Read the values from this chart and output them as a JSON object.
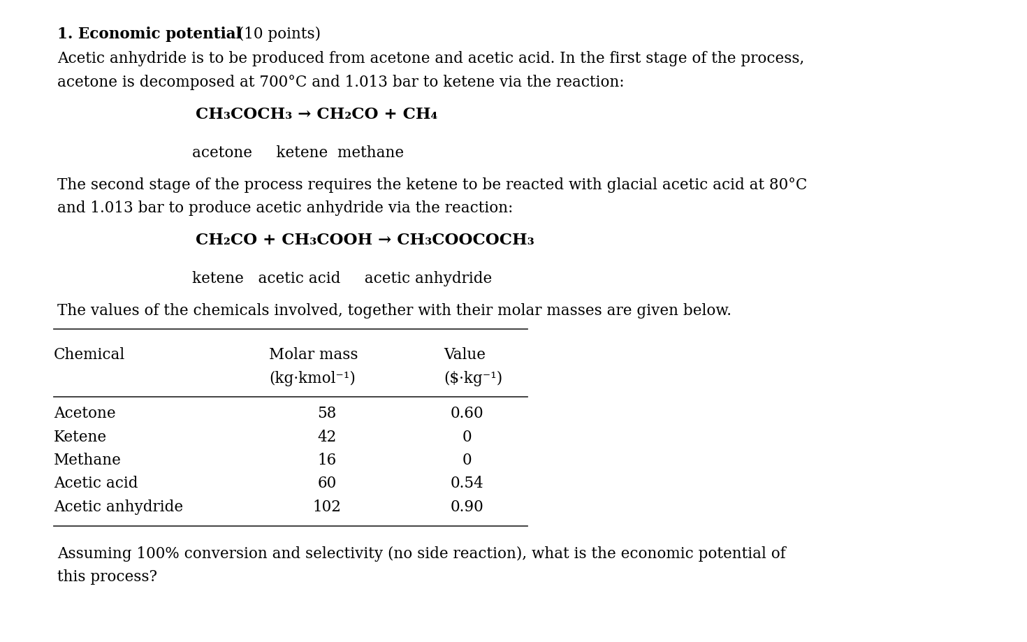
{
  "bg_color": "#ffffff",
  "title_bold": "1. Economic potential",
  "title_normal": " (10 points)",
  "para1_line1": "Acetic anhydride is to be produced from acetone and acetic acid. In the first stage of the process,",
  "para1_line2": "acetone is decomposed at 700°C and 1.013 bar to ketene via the reaction:",
  "reaction1": "CH₃COCH₃ → CH₂CO + CH₄",
  "reaction1_labels": "acetone     ketene  methane",
  "para2_line1": "The second stage of the process requires the ketene to be reacted with glacial acetic acid at 80°C",
  "para2_line2": "and 1.013 bar to produce acetic anhydride via the reaction:",
  "reaction2": "CH₂CO + CH₃COOH → CH₃COOCOCH₃",
  "reaction2_labels": "ketene   acetic acid     acetic anhydride",
  "para3": "The values of the chemicals involved, together with their molar masses are given below.",
  "col0_header": "Chemical",
  "col1_header_line1": "Molar mass",
  "col1_header_line2": "(kg·kmol⁻¹)",
  "col2_header_line1": "Value",
  "col2_header_line2": "($·kg⁻¹)",
  "table_data": [
    [
      "Acetone",
      "58",
      "0.60"
    ],
    [
      "Ketene",
      "42",
      "0"
    ],
    [
      "Methane",
      "16",
      "0"
    ],
    [
      "Acetic acid",
      "60",
      "0.54"
    ],
    [
      "Acetic anhydride",
      "102",
      "0.90"
    ]
  ],
  "question_line1": "Assuming 100% conversion and selectivity (no side reaction), what is the economic potential of",
  "question_line2": "this process?",
  "font_size": 15.5,
  "reaction_font_size": 16.5,
  "font_family": "DejaVu Serif"
}
